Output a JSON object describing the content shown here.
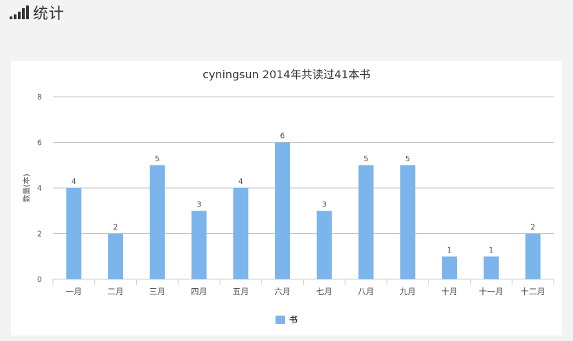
{
  "header": {
    "title": "统计",
    "icon": "signal-bars-icon"
  },
  "chart_data": {
    "type": "bar",
    "title": "cyningsun 2014年共读过41本书",
    "xlabel": "",
    "ylabel": "数量(本)",
    "ylim": [
      0,
      8
    ],
    "yticks": [
      0,
      2,
      4,
      6,
      8
    ],
    "grid": true,
    "legend_position": "bottom",
    "categories": [
      "一月",
      "二月",
      "三月",
      "四月",
      "五月",
      "六月",
      "七月",
      "八月",
      "九月",
      "十月",
      "十一月",
      "十二月"
    ],
    "series": [
      {
        "name": "书",
        "values": [
          4,
          2,
          5,
          3,
          4,
          6,
          3,
          5,
          5,
          1,
          1,
          2
        ],
        "color": "#7cb5ec"
      }
    ]
  }
}
